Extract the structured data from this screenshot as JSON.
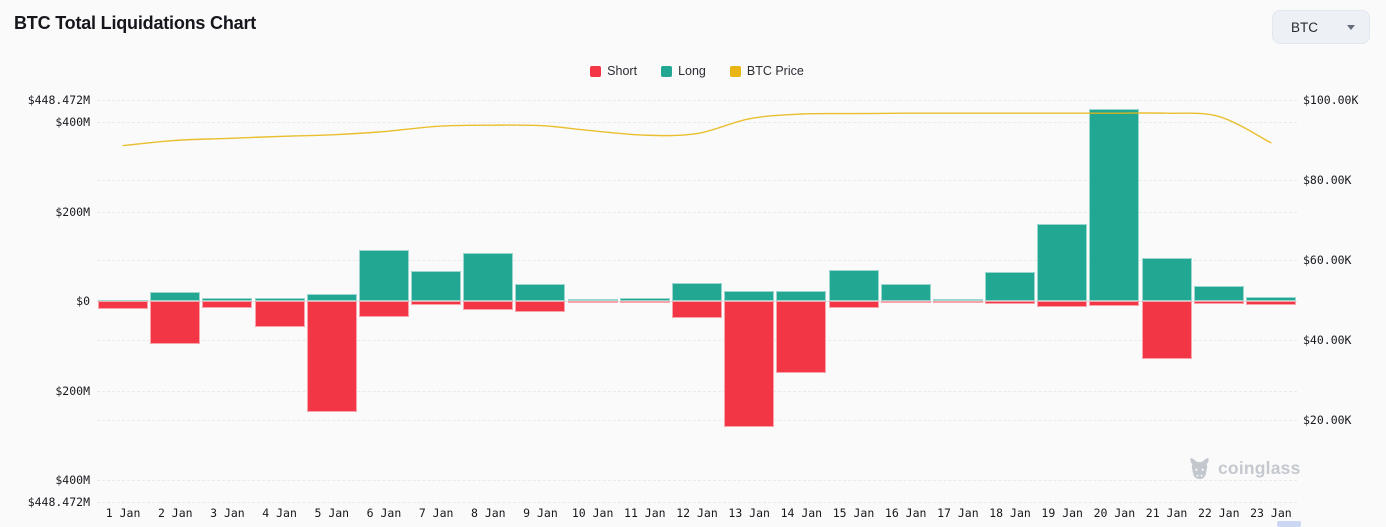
{
  "header": {
    "title": "BTC Total Liquidations Chart",
    "coin_selector": {
      "value": "BTC"
    }
  },
  "legend": {
    "items": [
      {
        "label": "Short",
        "color": "#f23645"
      },
      {
        "label": "Long",
        "color": "#22a793"
      },
      {
        "label": "BTC Price",
        "color": "#e8b512"
      }
    ]
  },
  "chart_data": {
    "type": "bar",
    "title": "BTC Total Liquidations Chart",
    "legend_position": "top",
    "grid": true,
    "categories": [
      "1 Jan",
      "2 Jan",
      "3 Jan",
      "4 Jan",
      "5 Jan",
      "6 Jan",
      "7 Jan",
      "8 Jan",
      "9 Jan",
      "10 Jan",
      "11 Jan",
      "12 Jan",
      "13 Jan",
      "14 Jan",
      "15 Jan",
      "16 Jan",
      "17 Jan",
      "18 Jan",
      "19 Jan",
      "20 Jan",
      "21 Jan",
      "22 Jan",
      "23 Jan"
    ],
    "series": [
      {
        "name": "Short",
        "type": "bar",
        "axis": "left",
        "direction": "down",
        "color": "#f23645",
        "unit": "USD millions",
        "values": [
          17,
          95,
          16,
          58,
          248,
          35,
          9,
          20,
          25,
          2,
          5,
          38,
          281,
          161,
          16,
          5,
          2,
          6,
          13,
          12,
          129,
          7,
          9
        ]
      },
      {
        "name": "Long",
        "type": "bar",
        "axis": "left",
        "direction": "up",
        "color": "#22a793",
        "unit": "USD millions",
        "values": [
          3,
          20,
          6,
          6,
          16,
          115,
          68,
          107,
          38,
          4,
          7,
          41,
          23,
          22,
          70,
          38,
          4,
          64,
          172,
          428,
          96,
          34,
          10
        ]
      },
      {
        "name": "BTC Price",
        "type": "line",
        "axis": "right",
        "color": "#e8b816",
        "unit": "USD thousands",
        "values": [
          88.6,
          89.9,
          90.4,
          90.9,
          91.3,
          92.1,
          93.4,
          93.7,
          93.6,
          92.3,
          91.2,
          91.6,
          95.3,
          96.5,
          96.6,
          96.7,
          96.7,
          96.7,
          96.7,
          96.7,
          96.7,
          95.9,
          89.3
        ]
      }
    ],
    "axes": {
      "left": {
        "unit": "USD millions",
        "range": [
          -448.472,
          448.472
        ],
        "ticks": [
          {
            "label": "$448.472M",
            "value": 448.472
          },
          {
            "label": "$400M",
            "value": 400
          },
          {
            "label": "$200M",
            "value": 200
          },
          {
            "label": "$0",
            "value": 0
          },
          {
            "label": "$200M",
            "value": -200
          },
          {
            "label": "$400M",
            "value": -400
          },
          {
            "label": "$448.472M",
            "value": -448.472
          }
        ]
      },
      "right": {
        "unit": "USD thousands",
        "ticks": [
          {
            "label": "$100.00K",
            "value": 100
          },
          {
            "label": "$80.00K",
            "value": 80
          },
          {
            "label": "$60.00K",
            "value": 60
          },
          {
            "label": "$40.00K",
            "value": 40
          },
          {
            "label": "$20.00K",
            "value": 20
          }
        ]
      }
    }
  },
  "watermark": {
    "text": "coinglass"
  }
}
